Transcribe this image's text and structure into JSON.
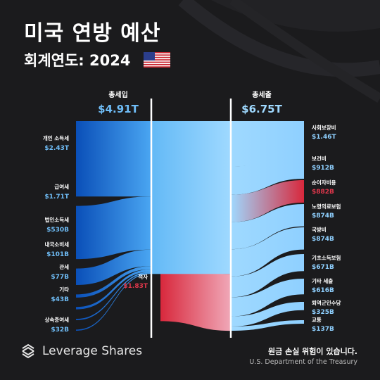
{
  "header": {
    "title": "미국 연방 예산",
    "subtitle": "회계연도: 2024"
  },
  "footer": {
    "brand": "Leverage Shares",
    "risk_notice": "원금 손실 위험이 있습니다.",
    "source": "U.S. Department of the Treasury"
  },
  "colors": {
    "income_blue": "#1a6fd6",
    "expense_blue": "#8fd0ff",
    "deficit_red": "#d8283c",
    "background": "#1b1b1d"
  },
  "chart_data": {
    "type": "sankey",
    "unit": "USD",
    "receipts": {
      "label": "총세입",
      "total": 4.91,
      "total_text": "$4.91T",
      "items": [
        {
          "name": "개인 소득세",
          "value": 2430,
          "value_text": "$2.43T"
        },
        {
          "name": "급여세",
          "value": 1710,
          "value_text": "$1.71T"
        },
        {
          "name": "법인소득세",
          "value": 530,
          "value_text": "$530B"
        },
        {
          "name": "내국소비세",
          "value": 101,
          "value_text": "$101B"
        },
        {
          "name": "관세",
          "value": 77,
          "value_text": "$77B"
        },
        {
          "name": "기타",
          "value": 43,
          "value_text": "$43B"
        },
        {
          "name": "상속증여세",
          "value": 32,
          "value_text": "$32B"
        }
      ]
    },
    "deficit": {
      "name": "적자",
      "value": 1830,
      "value_text": "$1.83T"
    },
    "outlays": {
      "label": "총세출",
      "total": 6.75,
      "total_text": "$6.75T",
      "items": [
        {
          "name": "사회보장비",
          "value": 1460,
          "value_text": "$1.46T",
          "highlight": false
        },
        {
          "name": "보건비",
          "value": 912,
          "value_text": "$912B",
          "highlight": false
        },
        {
          "name": "순이자비용",
          "value": 882,
          "value_text": "$882B",
          "highlight": true
        },
        {
          "name": "노령의료보험",
          "value": 874,
          "value_text": "$874B",
          "highlight": false
        },
        {
          "name": "국방비",
          "value": 874,
          "value_text": "$874B",
          "highlight": false
        },
        {
          "name": "기초소득보험",
          "value": 671,
          "value_text": "$671B",
          "highlight": false
        },
        {
          "name": "기타 세출",
          "value": 616,
          "value_text": "$616B",
          "highlight": false
        },
        {
          "name": "퇴역군인수당",
          "value": 325,
          "value_text": "$325B",
          "highlight": false
        },
        {
          "name": "교통",
          "value": 137,
          "value_text": "$137B",
          "highlight": false
        }
      ]
    }
  }
}
